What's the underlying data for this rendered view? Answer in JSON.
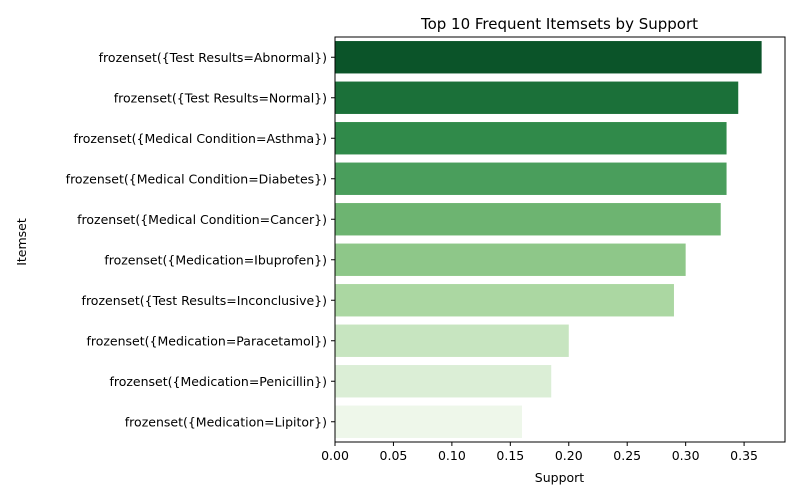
{
  "chart_data": {
    "type": "bar",
    "orientation": "horizontal",
    "title": "Top 10 Frequent Itemsets by Support",
    "xlabel": "Support",
    "ylabel": "Itemset",
    "xlim": [
      0,
      0.385
    ],
    "xticks": [
      0.0,
      0.05,
      0.1,
      0.15,
      0.2,
      0.25,
      0.3,
      0.35
    ],
    "xtick_labels": [
      "0.00",
      "0.05",
      "0.10",
      "0.15",
      "0.20",
      "0.25",
      "0.30",
      "0.35"
    ],
    "grid": false,
    "categories": [
      "frozenset({Test Results=Abnormal})",
      "frozenset({Test Results=Normal})",
      "frozenset({Medical Condition=Asthma})",
      "frozenset({Medical Condition=Diabetes})",
      "frozenset({Medical Condition=Cancer})",
      "frozenset({Medication=Ibuprofen})",
      "frozenset({Test Results=Inconclusive})",
      "frozenset({Medication=Paracetamol})",
      "frozenset({Medication=Penicillin})",
      "frozenset({Medication=Lipitor})"
    ],
    "values": [
      0.365,
      0.345,
      0.335,
      0.335,
      0.33,
      0.3,
      0.29,
      0.2,
      0.185,
      0.16
    ],
    "colors": [
      "#0b5429",
      "#1b7039",
      "#308a4a",
      "#4a9e5c",
      "#6db471",
      "#8ec789",
      "#abd7a2",
      "#c7e5c0",
      "#dbeed6",
      "#eef7ea"
    ]
  }
}
